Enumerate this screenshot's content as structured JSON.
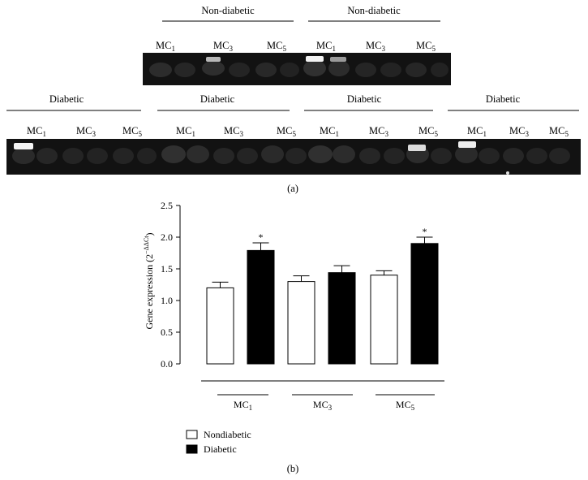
{
  "panel_a": {
    "label": "(a)",
    "top_groups": [
      {
        "title": "Non-diabetic",
        "lanes": [
          "MC",
          "MC",
          "MC"
        ],
        "subscripts": [
          "1",
          "3",
          "5"
        ]
      },
      {
        "title": "Non-diabetic",
        "lanes": [
          "MC",
          "MC",
          "MC"
        ],
        "subscripts": [
          "1",
          "3",
          "5"
        ]
      }
    ],
    "bottom_groups": [
      {
        "title": "Diabetic",
        "lanes": [
          "MC",
          "MC",
          "MC"
        ],
        "subscripts": [
          "1",
          "3",
          "5"
        ]
      },
      {
        "title": "Diabetic",
        "lanes": [
          "MC",
          "MC",
          "MC"
        ],
        "subscripts": [
          "1",
          "3",
          "5"
        ]
      },
      {
        "title": "Diabetic",
        "lanes": [
          "MC",
          "MC",
          "MC"
        ],
        "subscripts": [
          "1",
          "3",
          "5"
        ]
      },
      {
        "title": "Diabetic",
        "lanes": [
          "MC",
          "MC",
          "MC"
        ],
        "subscripts": [
          "1",
          "3",
          "5"
        ]
      }
    ]
  },
  "panel_b": {
    "label": "(b)",
    "ylabel_main": "Gene expression (2",
    "ylabel_sup": "−ΔΔCt",
    "ylabel_end": ")"
  },
  "chart_data": {
    "type": "bar",
    "categories": [
      "MC1",
      "MC3",
      "MC5"
    ],
    "category_labels": [
      {
        "main": "MC",
        "sub": "1"
      },
      {
        "main": "MC",
        "sub": "3"
      },
      {
        "main": "MC",
        "sub": "5"
      }
    ],
    "series": [
      {
        "name": "Nondiabetic",
        "values": [
          1.2,
          1.3,
          1.4
        ],
        "errors": [
          0.09,
          0.09,
          0.07
        ],
        "fill": "#ffffff",
        "stroke": "#000000"
      },
      {
        "name": "Diabetic",
        "values": [
          1.79,
          1.44,
          1.9
        ],
        "errors": [
          0.12,
          0.11,
          0.1
        ],
        "fill": "#000000",
        "stroke": "#000000"
      }
    ],
    "significance": [
      [
        false,
        true
      ],
      [
        false,
        false
      ],
      [
        false,
        true
      ]
    ],
    "significance_marker": "*",
    "ylim": [
      0,
      2.5
    ],
    "yticks": [
      0.0,
      0.5,
      1.0,
      1.5,
      2.0,
      2.5
    ],
    "ytick_labels": [
      "0.0",
      "0.5",
      "1.0",
      "1.5",
      "2.0",
      "2.5"
    ],
    "legend_position": "bottom-left",
    "grid": false
  }
}
